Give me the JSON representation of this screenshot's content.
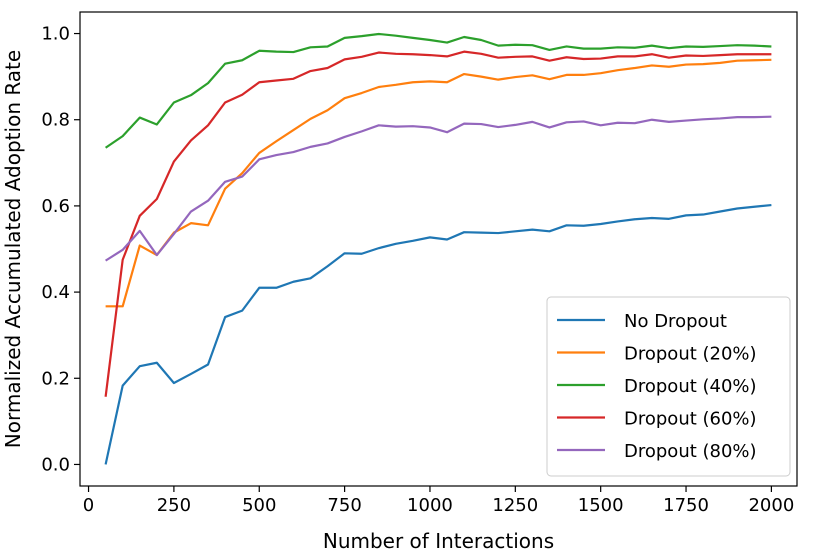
{
  "chart_data": {
    "type": "line",
    "title": "",
    "xlabel": "Number of Interactions",
    "ylabel": "Normalized Accumulated Adoption Rate",
    "xlim": [
      -25,
      2075
    ],
    "ylim": [
      -0.05,
      1.05
    ],
    "xticks": [
      0,
      250,
      500,
      750,
      1000,
      1250,
      1500,
      1750,
      2000
    ],
    "yticks": [
      0.0,
      0.2,
      0.4,
      0.6,
      0.8,
      1.0
    ],
    "xtick_labels": [
      "0",
      "250",
      "500",
      "750",
      "1000",
      "1250",
      "1500",
      "1750",
      "2000"
    ],
    "ytick_labels": [
      "0.0",
      "0.2",
      "0.4",
      "0.6",
      "0.8",
      "1.0"
    ],
    "grid": false,
    "legend_position": "bottom-right",
    "x": [
      50,
      100,
      150,
      200,
      250,
      300,
      350,
      400,
      450,
      500,
      550,
      600,
      650,
      700,
      750,
      800,
      850,
      900,
      950,
      1000,
      1050,
      1100,
      1150,
      1200,
      1250,
      1300,
      1350,
      1400,
      1450,
      1500,
      1550,
      1600,
      1650,
      1700,
      1750,
      1800,
      1850,
      1900,
      1950,
      2000
    ],
    "series": [
      {
        "name": "No Dropout",
        "color": "#1f77b4",
        "values": [
          0.0,
          0.183,
          0.228,
          0.236,
          0.189,
          0.21,
          0.232,
          0.342,
          0.357,
          0.41,
          0.41,
          0.424,
          0.432,
          0.46,
          0.49,
          0.489,
          0.502,
          0.512,
          0.519,
          0.527,
          0.522,
          0.539,
          0.538,
          0.537,
          0.541,
          0.545,
          0.541,
          0.555,
          0.554,
          0.558,
          0.564,
          0.569,
          0.572,
          0.57,
          0.578,
          0.58,
          0.587,
          0.594,
          0.598,
          0.602
        ]
      },
      {
        "name": "Dropout (20%)",
        "color": "#ff7f0e",
        "values": [
          0.367,
          0.367,
          0.508,
          0.486,
          0.538,
          0.56,
          0.555,
          0.64,
          0.676,
          0.723,
          0.75,
          0.776,
          0.802,
          0.822,
          0.85,
          0.862,
          0.876,
          0.881,
          0.887,
          0.889,
          0.887,
          0.906,
          0.9,
          0.893,
          0.899,
          0.903,
          0.894,
          0.904,
          0.904,
          0.908,
          0.915,
          0.92,
          0.926,
          0.923,
          0.928,
          0.929,
          0.932,
          0.937,
          0.938,
          0.939
        ]
      },
      {
        "name": "Dropout (40%)",
        "color": "#2ca02c",
        "values": [
          0.735,
          0.762,
          0.805,
          0.789,
          0.84,
          0.857,
          0.885,
          0.93,
          0.938,
          0.96,
          0.958,
          0.957,
          0.968,
          0.97,
          0.99,
          0.994,
          0.999,
          0.995,
          0.99,
          0.985,
          0.979,
          0.992,
          0.985,
          0.972,
          0.974,
          0.973,
          0.962,
          0.97,
          0.965,
          0.965,
          0.968,
          0.967,
          0.972,
          0.966,
          0.97,
          0.969,
          0.971,
          0.973,
          0.972,
          0.97
        ]
      },
      {
        "name": "Dropout (60%)",
        "color": "#d62728",
        "values": [
          0.157,
          0.475,
          0.577,
          0.616,
          0.703,
          0.752,
          0.787,
          0.84,
          0.858,
          0.887,
          0.891,
          0.895,
          0.913,
          0.92,
          0.94,
          0.946,
          0.956,
          0.953,
          0.952,
          0.95,
          0.947,
          0.958,
          0.953,
          0.944,
          0.946,
          0.947,
          0.937,
          0.945,
          0.941,
          0.942,
          0.947,
          0.947,
          0.952,
          0.944,
          0.949,
          0.948,
          0.95,
          0.952,
          0.952,
          0.952
        ]
      },
      {
        "name": "Dropout (80%)",
        "color": "#9467bd",
        "values": [
          0.473,
          0.498,
          0.542,
          0.486,
          0.535,
          0.587,
          0.612,
          0.656,
          0.668,
          0.708,
          0.718,
          0.725,
          0.737,
          0.745,
          0.76,
          0.773,
          0.787,
          0.784,
          0.785,
          0.782,
          0.771,
          0.791,
          0.79,
          0.783,
          0.788,
          0.795,
          0.782,
          0.794,
          0.796,
          0.787,
          0.793,
          0.792,
          0.8,
          0.795,
          0.798,
          0.801,
          0.803,
          0.806,
          0.806,
          0.807
        ]
      }
    ]
  }
}
